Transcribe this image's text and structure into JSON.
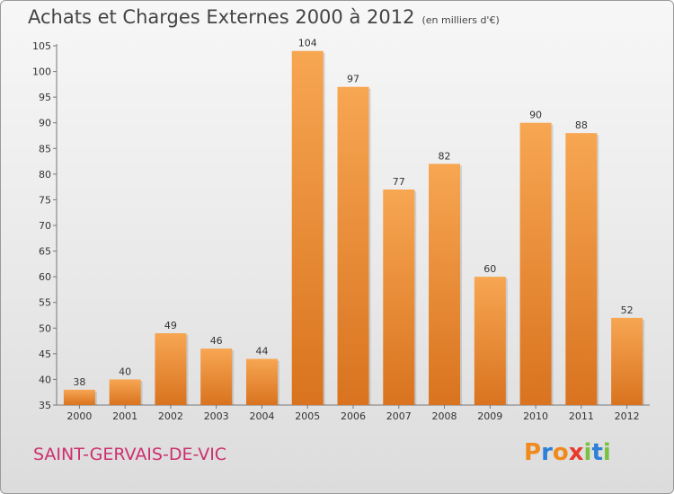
{
  "title": "Achats et Charges Externes 2000 à 2012",
  "subtitle": "(en milliers d'€)",
  "commune": "SAINT-GERVAIS-DE-VIC",
  "logo": {
    "letters": [
      "P",
      "r",
      "o",
      "x",
      "i",
      "t",
      "i"
    ],
    "colors": [
      "#f08a1c",
      "#2e7fd6",
      "#f08a1c",
      "#e8392c",
      "#7ac142",
      "#2e7fd6",
      "#7ac142"
    ]
  },
  "colors": {
    "bar": "#f5a04a",
    "bar_dark": "#d9731f",
    "commune": "#cc2f6e"
  },
  "chart_data": {
    "type": "bar",
    "categories": [
      "2000",
      "2001",
      "2002",
      "2003",
      "2004",
      "2005",
      "2006",
      "2007",
      "2008",
      "2009",
      "2010",
      "2011",
      "2012"
    ],
    "values": [
      38,
      40,
      49,
      46,
      44,
      104,
      97,
      77,
      82,
      60,
      90,
      88,
      52
    ],
    "ylim": [
      35,
      105
    ],
    "yticks": [
      35,
      40,
      45,
      50,
      55,
      60,
      65,
      70,
      75,
      80,
      85,
      90,
      95,
      100,
      105
    ],
    "grid": false,
    "show_value_labels": true
  }
}
